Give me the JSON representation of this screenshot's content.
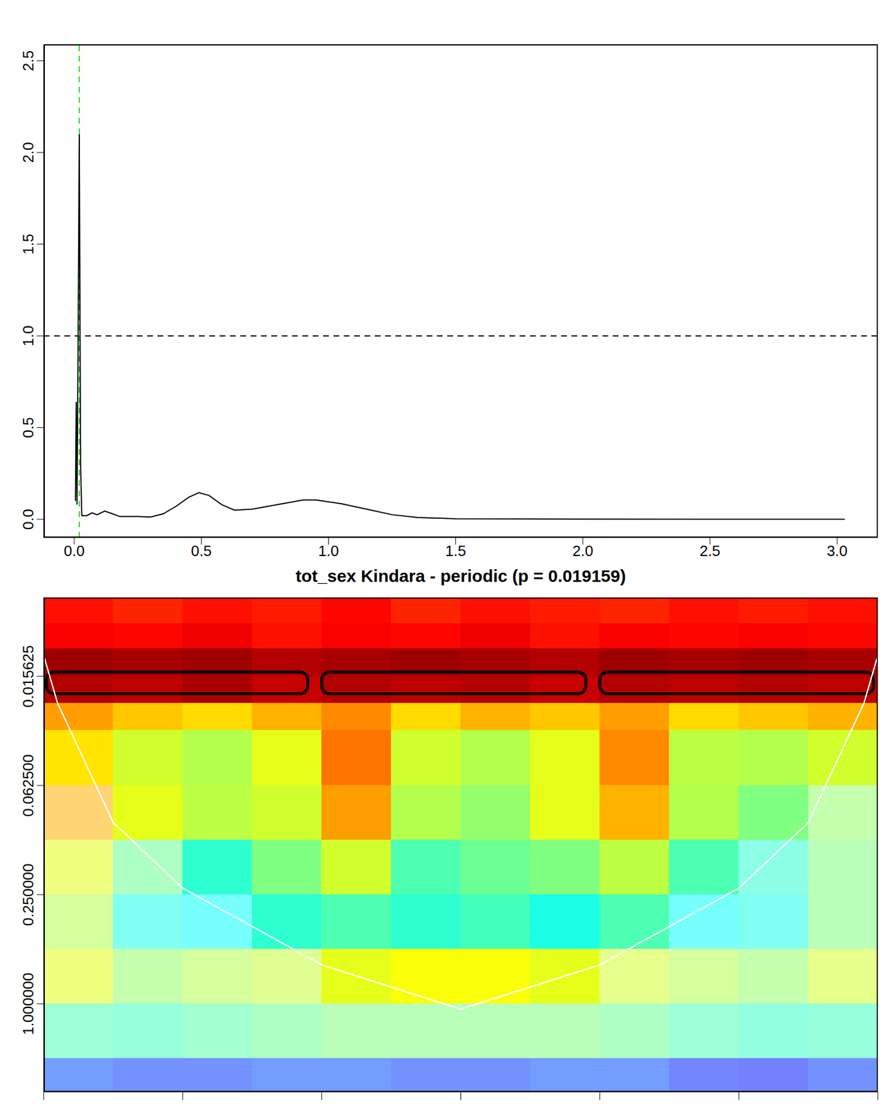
{
  "chart_data": [
    {
      "type": "line",
      "x": [
        0.005,
        0.008,
        0.011,
        0.015,
        0.02,
        0.025,
        0.03,
        0.05,
        0.07,
        0.09,
        0.12,
        0.15,
        0.18,
        0.25,
        0.3,
        0.35,
        0.4,
        0.45,
        0.49,
        0.53,
        0.58,
        0.63,
        0.7,
        0.8,
        0.9,
        0.95,
        1.05,
        1.15,
        1.25,
        1.35,
        1.5,
        2.0,
        2.5,
        3.03
      ],
      "values": [
        0.1,
        0.64,
        0.08,
        0.9,
        2.1,
        0.3,
        0.02,
        0.02,
        0.035,
        0.025,
        0.045,
        0.03,
        0.015,
        0.015,
        0.012,
        0.03,
        0.07,
        0.12,
        0.145,
        0.13,
        0.08,
        0.05,
        0.055,
        0.08,
        0.105,
        0.105,
        0.085,
        0.055,
        0.025,
        0.01,
        0.003,
        0.001,
        0.0,
        0.0
      ],
      "xlim": [
        -0.12,
        3.16
      ],
      "ylim": [
        -0.1,
        2.59
      ],
      "xticks": [
        {
          "value": 0,
          "label": "0.0"
        },
        0.5,
        {
          "value": 1,
          "label": "1.0"
        },
        1.5,
        {
          "value": 2,
          "label": "2.0"
        },
        2.5,
        {
          "value": 3,
          "label": "3.0"
        }
      ],
      "yticks": [
        {
          "value": 0,
          "label": "0.0"
        },
        0.5,
        {
          "value": 1,
          "label": "1.0"
        },
        1.5,
        {
          "value": 2,
          "label": "2.0"
        },
        2.5
      ],
      "hline": 1.0,
      "vline": 0.02
    },
    {
      "type": "heatmap",
      "title": "tot_sex Kindara - periodic (p = 0.019159)",
      "log": "y",
      "tick_labels": "y",
      "xlim": [
        0,
        6
      ],
      "xticks": [
        0,
        1,
        2,
        3,
        4,
        5,
        6
      ],
      "ylim": [
        0.00574,
        3.06
      ],
      "yticks": [
        0.015625,
        {
          "value": 0.0625,
          "label": "0.062500"
        },
        {
          "value": 0.25,
          "label": "0.250000"
        },
        {
          "value": 1,
          "label": "1.000000"
        }
      ],
      "x_edges": [
        0,
        0.5,
        1,
        1.5,
        2,
        2.5,
        3,
        3.5,
        4,
        4.5,
        5,
        5.5,
        6
      ],
      "y_edges": [
        0.00574,
        0.008,
        0.011,
        0.0156,
        0.022,
        0.031,
        0.0625,
        0.125,
        0.25,
        0.5,
        1,
        2,
        3.06
      ],
      "power": [
        [
          0.86,
          0.84,
          0.86,
          0.85,
          0.87,
          0.84,
          0.86,
          0.85,
          0.84,
          0.86,
          0.85,
          0.86
        ],
        [
          0.88,
          0.87,
          0.89,
          0.86,
          0.88,
          0.87,
          0.89,
          0.86,
          0.88,
          0.87,
          0.88,
          0.87
        ],
        [
          0.97,
          0.96,
          0.97,
          0.95,
          0.96,
          0.97,
          0.96,
          0.95,
          0.97,
          0.96,
          0.97,
          0.96
        ],
        [
          0.95,
          0.94,
          0.96,
          0.93,
          0.95,
          0.94,
          0.95,
          0.93,
          0.95,
          0.94,
          0.95,
          0.94
        ],
        [
          0.72,
          0.68,
          0.66,
          0.7,
          0.74,
          0.66,
          0.7,
          0.68,
          0.72,
          0.66,
          0.68,
          0.7
        ],
        [
          0.65,
          0.58,
          0.55,
          0.6,
          0.76,
          0.58,
          0.55,
          0.6,
          0.74,
          0.56,
          0.55,
          0.58
        ],
        [
          0.7,
          0.6,
          0.56,
          0.58,
          0.72,
          0.55,
          0.52,
          0.6,
          0.7,
          0.55,
          0.5,
          0.52
        ],
        [
          0.6,
          0.48,
          0.42,
          0.5,
          0.58,
          0.45,
          0.48,
          0.5,
          0.56,
          0.45,
          0.42,
          0.5
        ],
        [
          0.55,
          0.4,
          0.38,
          0.42,
          0.45,
          0.42,
          0.44,
          0.4,
          0.45,
          0.38,
          0.4,
          0.5
        ],
        [
          0.6,
          0.52,
          0.55,
          0.57,
          0.6,
          0.62,
          0.62,
          0.6,
          0.58,
          0.55,
          0.52,
          0.58
        ],
        [
          0.45,
          0.44,
          0.46,
          0.48,
          0.5,
          0.5,
          0.5,
          0.5,
          0.48,
          0.45,
          0.43,
          0.44
        ],
        [
          0.2,
          0.18,
          0.18,
          0.2,
          0.2,
          0.18,
          0.18,
          0.2,
          0.2,
          0.16,
          0.15,
          0.18
        ]
      ],
      "coi": {
        "x": [
          0,
          0.1,
          0.5,
          1,
          2,
          3,
          4,
          5,
          5.5,
          5.9,
          6
        ],
        "y": [
          0.012,
          0.022,
          0.1,
          0.23,
          0.61,
          1.07,
          0.61,
          0.23,
          0.1,
          0.022,
          0.012
        ]
      },
      "significant": [
        {
          "x": [
            0.02,
            1.9
          ],
          "y": [
            0.0148,
            0.0195
          ]
        },
        {
          "x": [
            2.0,
            3.9
          ],
          "y": [
            0.0148,
            0.0195
          ]
        },
        {
          "x": [
            4.0,
            5.97
          ],
          "y": [
            0.0148,
            0.0195
          ]
        }
      ]
    }
  ]
}
